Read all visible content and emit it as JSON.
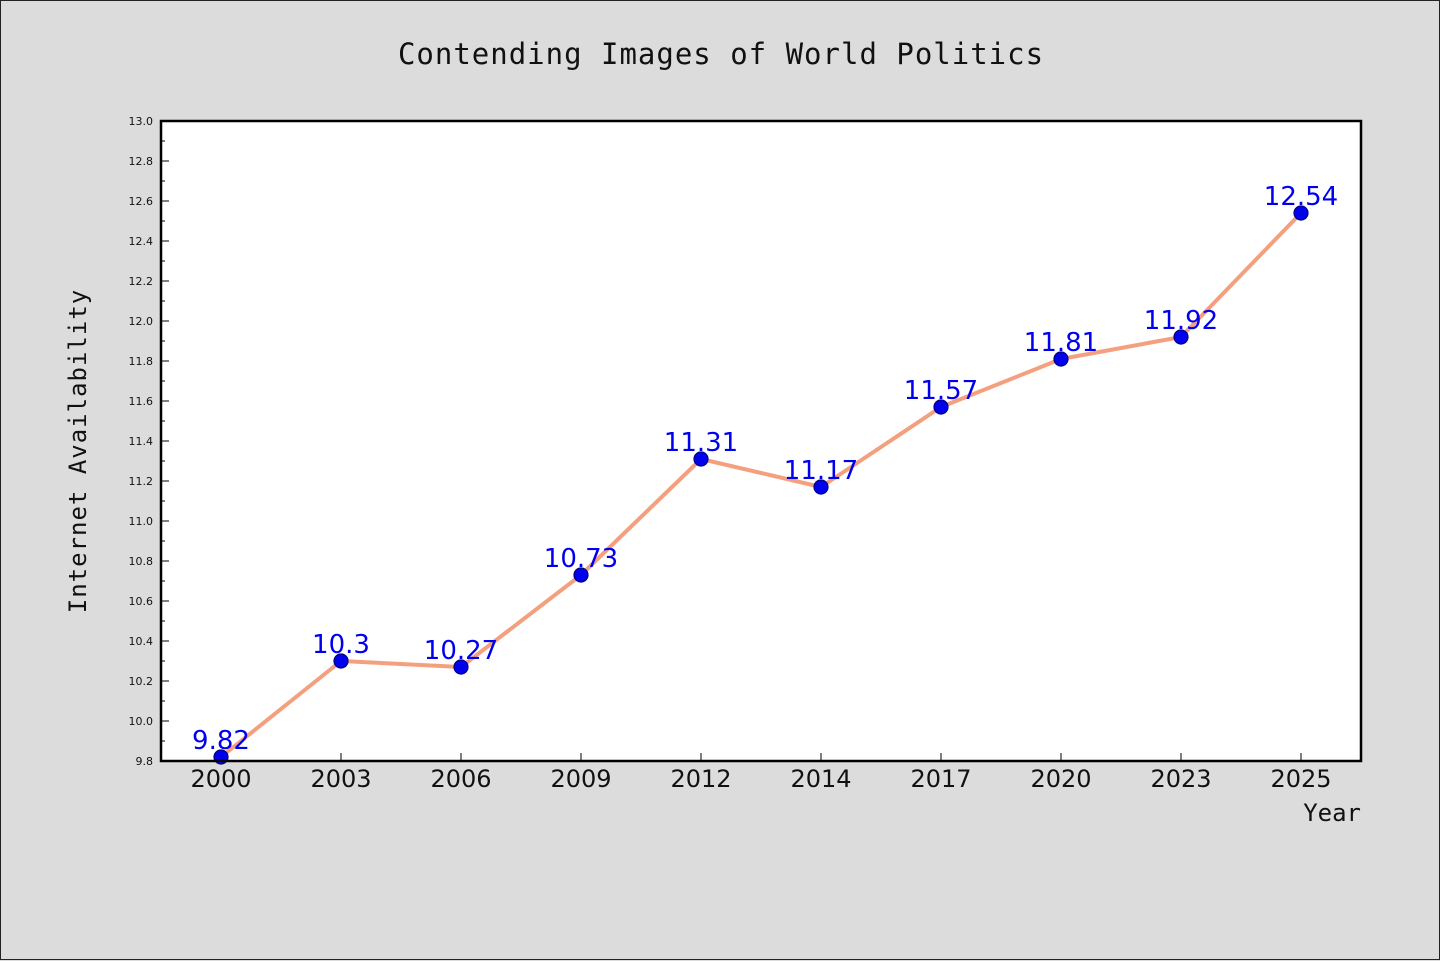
{
  "chart_data": {
    "type": "line",
    "title": "Contending Images of World Politics",
    "xlabel": "Year",
    "ylabel": "Internet Availability",
    "categories": [
      "2000",
      "2003",
      "2006",
      "2009",
      "2012",
      "2014",
      "2017",
      "2020",
      "2023",
      "2025"
    ],
    "series": [
      {
        "values": [
          9.82,
          10.3,
          10.27,
          10.73,
          11.31,
          11.17,
          11.57,
          11.81,
          11.92,
          12.54
        ],
        "labels": [
          "9.82",
          "10.3",
          "10.27",
          "10.73",
          "11.31",
          "11.17",
          "11.57",
          "11.81",
          "11.92",
          "12.54"
        ]
      }
    ],
    "ylim": [
      9.8,
      13.0
    ],
    "yticks": [
      "9.8",
      "10.0",
      "10.2",
      "10.4",
      "10.6",
      "10.8",
      "11.0",
      "11.2",
      "11.4",
      "11.6",
      "11.8",
      "12.0",
      "12.2",
      "12.4",
      "12.6",
      "12.8",
      "13.0"
    ],
    "grid": false,
    "colors": {
      "line": "#f4a07f",
      "marker": "#0000ee",
      "marker_edge": "#000080",
      "data_label": "#0000ee",
      "plot_background": "#ffffff",
      "figure_background": "#dcdcdc"
    }
  }
}
